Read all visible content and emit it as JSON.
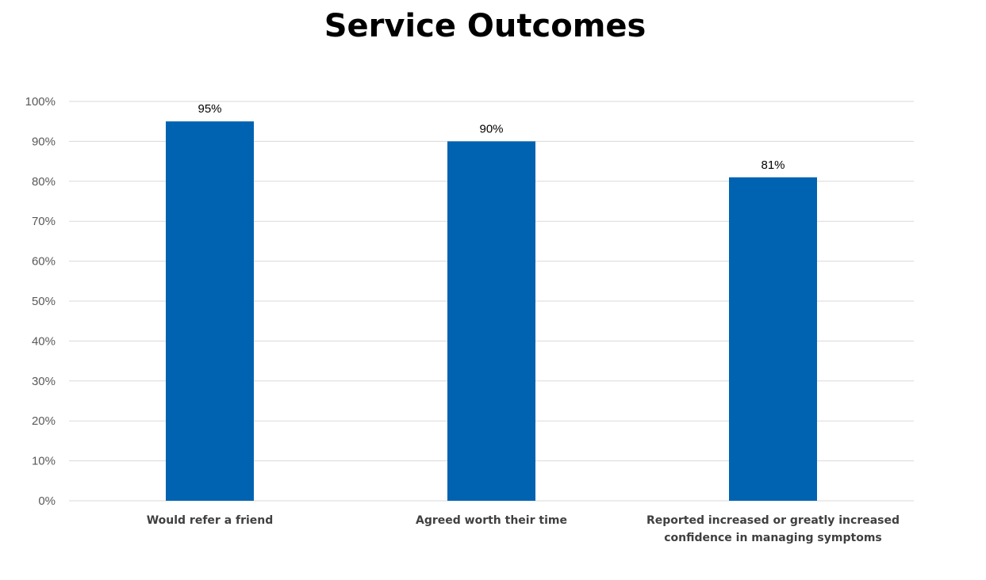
{
  "chart_data": {
    "type": "bar",
    "title": "Service Outcomes",
    "categories": [
      [
        "Would refer a friend"
      ],
      [
        "Agreed worth their time"
      ],
      [
        "Reported increased or greatly increased",
        "confidence in managing symptoms"
      ]
    ],
    "values": [
      95,
      90,
      81
    ],
    "data_labels": [
      "95%",
      "90%",
      "81%"
    ],
    "ylim": [
      0,
      100
    ],
    "yticks": [
      0,
      10,
      20,
      30,
      40,
      50,
      60,
      70,
      80,
      90,
      100
    ],
    "ytick_labels": [
      "0%",
      "10%",
      "20%",
      "30%",
      "40%",
      "50%",
      "60%",
      "70%",
      "80%",
      "90%",
      "100%"
    ],
    "grid": true,
    "bar_color": "#0063B1",
    "grid_color": "#D9D9D9"
  }
}
